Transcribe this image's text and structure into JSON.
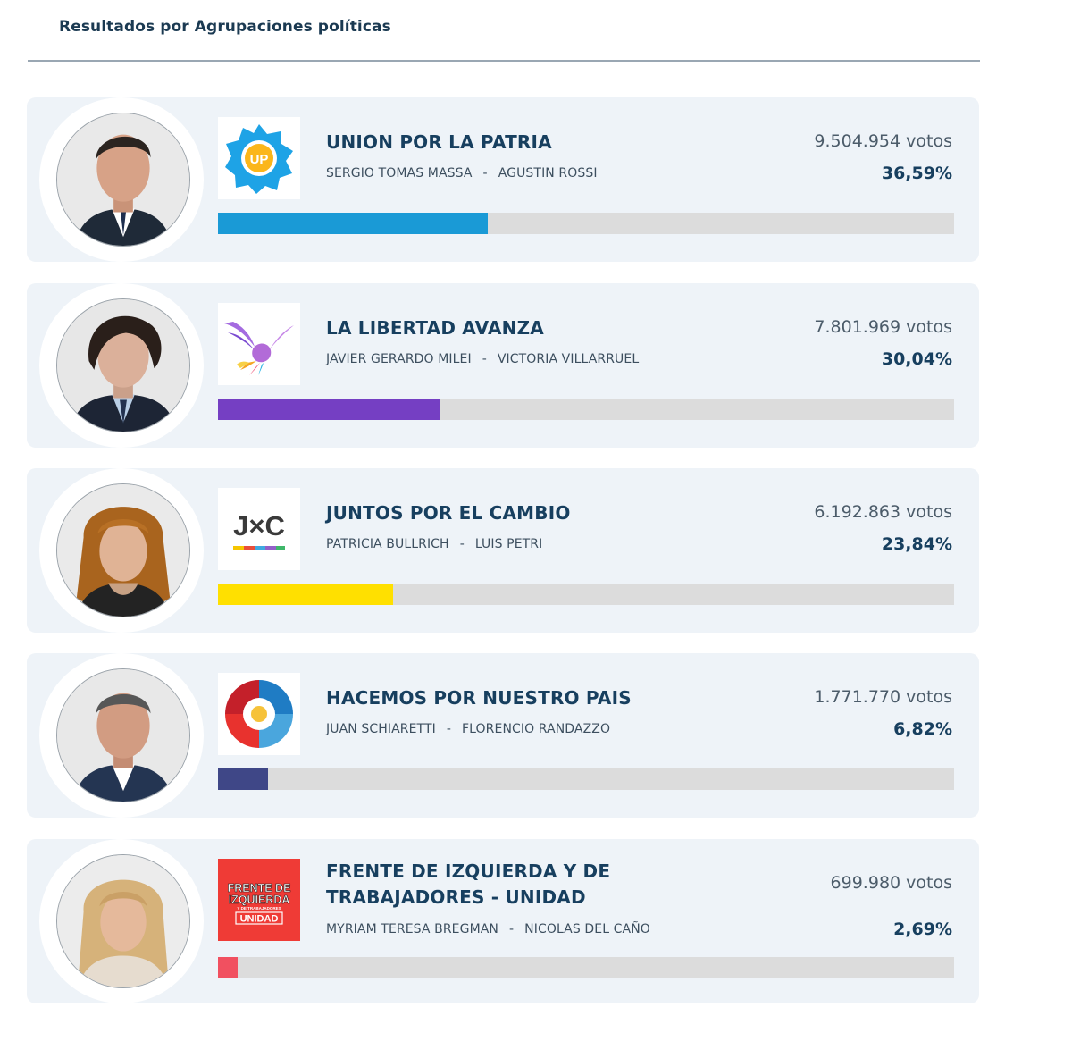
{
  "header": {
    "title": "Resultados por Agrupaciones políticas"
  },
  "results": [
    {
      "party": "UNION POR LA PATRIA",
      "candidate_1": "SERGIO TOMAS MASSA",
      "separator": "-",
      "candidate_2": "AGUSTIN ROSSI",
      "votes": "9.504.954 votos",
      "percent": "36,59%",
      "share": 0.3659,
      "color": "#1a9ad6",
      "logo": "union-por-la-patria-logo",
      "logo_text": "UP"
    },
    {
      "party": "LA LIBERTAD AVANZA",
      "candidate_1": "JAVIER GERARDO MILEI",
      "separator": "-",
      "candidate_2": "VICTORIA VILLARRUEL",
      "votes": "7.801.969 votos",
      "percent": "30,04%",
      "share": 0.3004,
      "color": "#753fc3",
      "logo": "la-libertad-avanza-logo"
    },
    {
      "party": "JUNTOS POR EL CAMBIO",
      "candidate_1": "PATRICIA BULLRICH",
      "separator": "-",
      "candidate_2": "LUIS PETRI",
      "votes": "6.192.863 votos",
      "percent": "23,84%",
      "share": 0.2384,
      "color": "#ffe000",
      "logo": "juntos-por-el-cambio-logo",
      "logo_text": "J×C"
    },
    {
      "party": "HACEMOS POR NUESTRO PAIS",
      "candidate_1": "JUAN SCHIARETTI",
      "separator": "-",
      "candidate_2": "FLORENCIO RANDAZZO",
      "votes": "1.771.770 votos",
      "percent": "6,82%",
      "share": 0.0682,
      "color": "#3f4787",
      "logo": "hacemos-por-nuestro-pais-logo"
    },
    {
      "party": "FRENTE DE IZQUIERDA Y DE TRABAJADORES - UNIDAD",
      "candidate_1": "MYRIAM TERESA BREGMAN",
      "separator": "-",
      "candidate_2": "NICOLAS DEL CAÑO",
      "votes": "699.980 votos",
      "percent": "2,69%",
      "share": 0.0269,
      "color": "#f15060",
      "logo": "frente-de-izquierda-logo",
      "logo_text": [
        "FRENTE DE",
        "IZQUIERDA",
        "Y DE TRABAJADORES",
        "UNIDAD"
      ]
    }
  ]
}
